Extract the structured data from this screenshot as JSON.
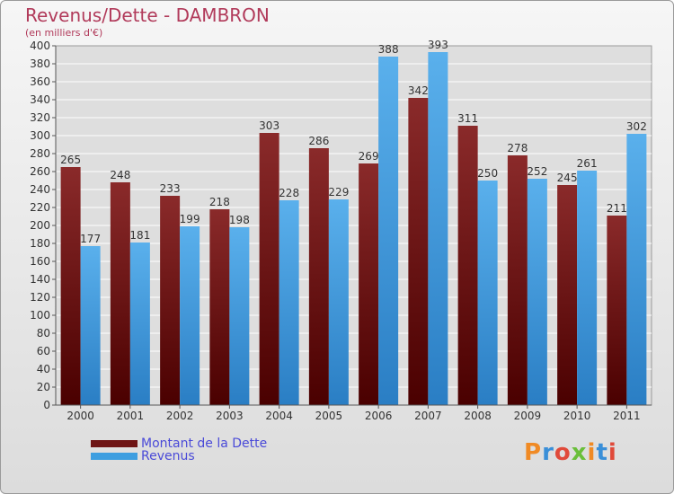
{
  "title": "Revenus/Dette - DAMBRON",
  "subtitle": "(en milliers d'€)",
  "legend": [
    {
      "label": "Montant de la Dette",
      "color": "#6e1414"
    },
    {
      "label": "Revenus",
      "color": "#3d9ee0"
    }
  ],
  "logo": {
    "text": "Proxiti",
    "letters": [
      "P",
      "r",
      "o",
      "x",
      "i",
      "t",
      "i"
    ],
    "colors": [
      "#f08a24",
      "#3a8fd8",
      "#e04a3a",
      "#6abf3a",
      "#f08a24",
      "#3a8fd8",
      "#e04a3a"
    ]
  },
  "chart_data": {
    "type": "bar",
    "categories": [
      "2000",
      "2001",
      "2002",
      "2003",
      "2004",
      "2005",
      "2006",
      "2007",
      "2008",
      "2009",
      "2010",
      "2011"
    ],
    "series": [
      {
        "name": "Montant de la Dette",
        "values": [
          265,
          248,
          233,
          218,
          303,
          286,
          269,
          342,
          311,
          278,
          245,
          211
        ]
      },
      {
        "name": "Revenus",
        "values": [
          177,
          181,
          199,
          198,
          228,
          229,
          388,
          393,
          250,
          252,
          261,
          302
        ]
      }
    ],
    "ylim": [
      0,
      400
    ],
    "yticks": [
      0,
      20,
      40,
      60,
      80,
      100,
      120,
      140,
      160,
      180,
      200,
      220,
      240,
      260,
      280,
      300,
      320,
      340,
      360,
      380,
      400
    ],
    "grid": true,
    "legend_position": "bottom-left"
  }
}
